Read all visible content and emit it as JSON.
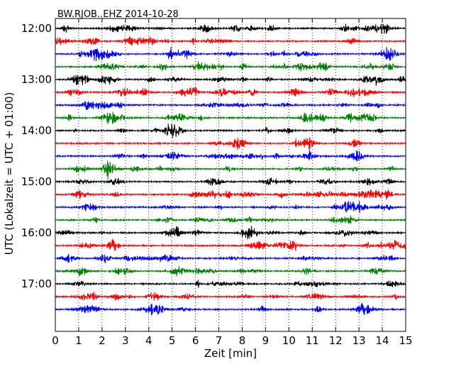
{
  "chart_data": {
    "type": "line",
    "title": "BW.RJOB..EHZ 2014-10-28",
    "xlabel": "Zeit  [min]",
    "ylabel": "UTC (Lokalzeit = UTC + 01:00)",
    "xlim": [
      0,
      15
    ],
    "x_ticks": [
      "0",
      "1",
      "2",
      "3",
      "4",
      "5",
      "6",
      "7",
      "8",
      "9",
      "10",
      "11",
      "12",
      "13",
      "14",
      "15"
    ],
    "y_ticks": [
      "12:00",
      "13:00",
      "14:00",
      "15:00",
      "16:00",
      "17:00"
    ],
    "trace_interval_minutes": 15,
    "grid": "vertical dotted",
    "colors": [
      "#000000",
      "#ff0000",
      "#0000ff",
      "#008000"
    ],
    "traces": [
      {
        "start": "12:00",
        "color": "#000000"
      },
      {
        "start": "12:15",
        "color": "#ff0000"
      },
      {
        "start": "12:30",
        "color": "#0000ff"
      },
      {
        "start": "12:45",
        "color": "#008000"
      },
      {
        "start": "13:00",
        "color": "#000000"
      },
      {
        "start": "13:15",
        "color": "#ff0000"
      },
      {
        "start": "13:30",
        "color": "#0000ff"
      },
      {
        "start": "13:45",
        "color": "#008000"
      },
      {
        "start": "14:00",
        "color": "#000000"
      },
      {
        "start": "14:15",
        "color": "#ff0000"
      },
      {
        "start": "14:30",
        "color": "#0000ff"
      },
      {
        "start": "14:45",
        "color": "#008000"
      },
      {
        "start": "15:00",
        "color": "#000000"
      },
      {
        "start": "15:15",
        "color": "#ff0000"
      },
      {
        "start": "15:30",
        "color": "#0000ff"
      },
      {
        "start": "15:45",
        "color": "#008000"
      },
      {
        "start": "16:00",
        "color": "#000000"
      },
      {
        "start": "16:15",
        "color": "#ff0000"
      },
      {
        "start": "16:30",
        "color": "#0000ff"
      },
      {
        "start": "16:45",
        "color": "#008000"
      },
      {
        "start": "17:00",
        "color": "#000000"
      },
      {
        "start": "17:15",
        "color": "#ff0000"
      },
      {
        "start": "17:30",
        "color": "#0000ff"
      }
    ]
  }
}
